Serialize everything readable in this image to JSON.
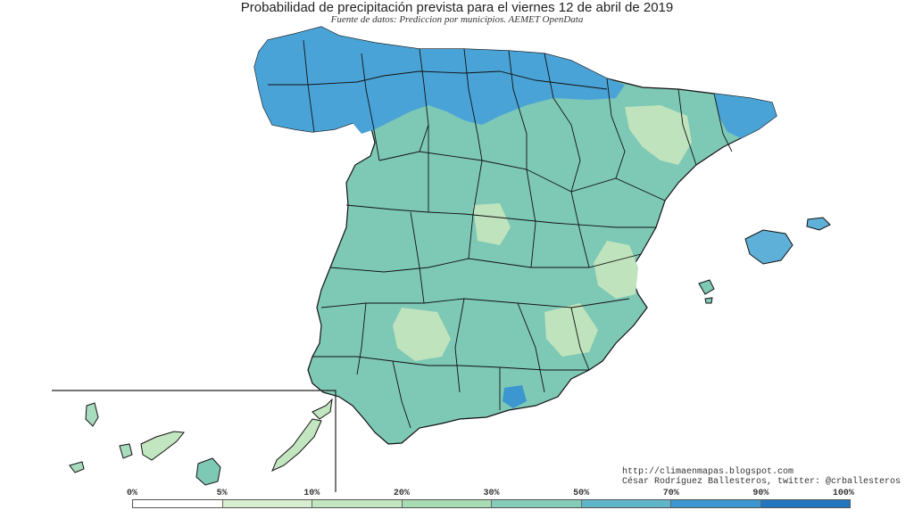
{
  "title": "Probabilidad de precipitación prevista para el viernes 12 de abril de 2019",
  "subtitle": "Fuente de datos: Prediccion por municipios. AEMET OpenData",
  "credits": {
    "url": "http://climaenmapas.blogspot.com",
    "author": "César Rodríguez Ballesteros, twitter: @crballesteros"
  },
  "legend": {
    "labels": [
      "0%",
      "5%",
      "10%",
      "20%",
      "30%",
      "50%",
      "70%",
      "90%",
      "100%"
    ],
    "colors": [
      "#ffffff",
      "#d7efd0",
      "#c2e6c0",
      "#a8dcb5",
      "#86cdb9",
      "#5fb6c9",
      "#3c96cf",
      "#2077bf"
    ]
  },
  "regions": {
    "main_color": "#7ec8b6",
    "north_color": "#4aa3d6",
    "pale_color": "#bfe3bd",
    "balearic_color": "#5fb0d8",
    "canary_color": "#a8dcbf"
  }
}
